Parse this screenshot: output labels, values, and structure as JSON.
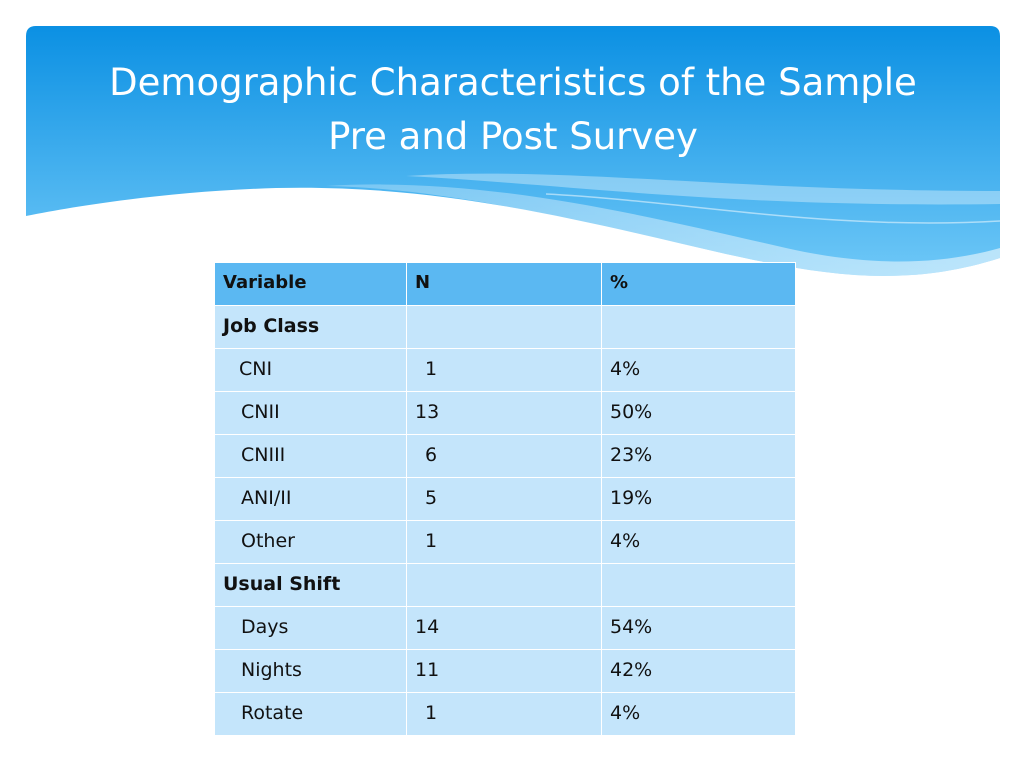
{
  "slide": {
    "title_line1": "Demographic Characteristics of the Sample",
    "title_line2": "Pre and Post Survey",
    "colors": {
      "banner_top": "#0b90e3",
      "banner_bottom": "#6fc8f7",
      "header_row": "#5bb8f2",
      "body_row": "#c4e5fb"
    }
  },
  "table": {
    "headers": [
      "Variable",
      "N",
      "%"
    ],
    "rows": [
      {
        "variable": "Job Class",
        "n": "",
        "pct": "",
        "group": true
      },
      {
        "variable": "CNI",
        "n": "1",
        "pct": "4%"
      },
      {
        "variable": "CNII",
        "n": "13",
        "pct": "50%"
      },
      {
        "variable": "CNIII",
        "n": "6",
        "pct": "23%"
      },
      {
        "variable": "ANI/II",
        "n": "5",
        "pct": "19%"
      },
      {
        "variable": "Other",
        "n": "1",
        "pct": "4%"
      },
      {
        "variable": "Usual Shift",
        "n": "",
        "pct": "",
        "group": true
      },
      {
        "variable": "Days",
        "n": "14",
        "pct": "54%"
      },
      {
        "variable": "Nights",
        "n": "11",
        "pct": "42%"
      },
      {
        "variable": "Rotate",
        "n": "1",
        "pct": "4%"
      }
    ]
  }
}
